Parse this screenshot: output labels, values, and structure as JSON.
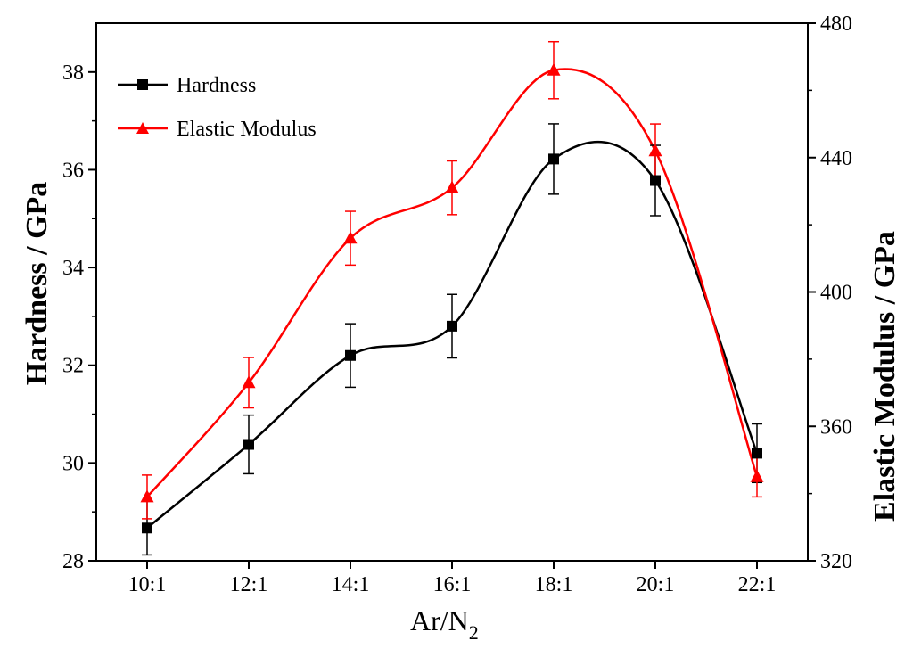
{
  "chart_data": {
    "type": "line",
    "categories": [
      "10:1",
      "12:1",
      "14:1",
      "16:1",
      "18:1",
      "20:1",
      "22:1"
    ],
    "xlabel": "Ar/N",
    "xlabel_subscript": "2",
    "ylabel_left": "Hardness / GPa",
    "ylabel_right": "Elastic Modulus / GPa",
    "ylim_left": [
      28,
      39
    ],
    "yticks_left": [
      "28",
      "30",
      "32",
      "34",
      "36",
      "38"
    ],
    "ylim_right": [
      320,
      480
    ],
    "yticks_right": [
      "320",
      "360",
      "400",
      "440",
      "480"
    ],
    "legend_position": "top-left",
    "series": [
      {
        "name": "Hardness",
        "axis": "left",
        "color": "#000000",
        "marker": "square",
        "values": [
          28.67,
          30.38,
          32.2,
          32.8,
          36.22,
          35.78,
          30.2
        ],
        "errors": [
          0.55,
          0.6,
          0.65,
          0.65,
          0.72,
          0.72,
          0.6
        ]
      },
      {
        "name": "Elastic Modulus",
        "axis": "right",
        "color": "#ff0000",
        "marker": "triangle",
        "values": [
          339,
          373,
          416,
          431,
          466,
          442,
          345
        ],
        "errors": [
          6.5,
          7.5,
          8,
          8,
          8.5,
          8,
          6
        ]
      }
    ]
  }
}
